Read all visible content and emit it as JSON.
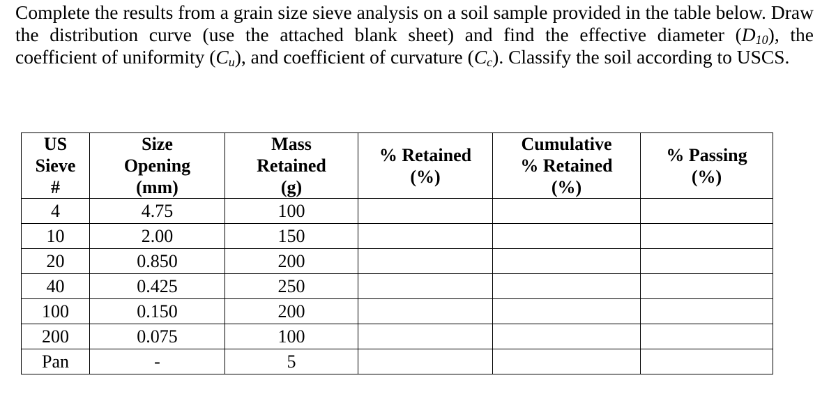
{
  "question": {
    "segments": [
      "Complete the results from a grain size sieve analysis on a soil sample provided in the table below. Draw the distribution curve (use the attached blank sheet) and find the effective diameter (",
      "D",
      "10",
      "), the coefficient of uniformity (",
      "C",
      "u",
      "), and coefficient of curvature (",
      "C",
      "c",
      "). Classify the soil according to USCS."
    ]
  },
  "table": {
    "headers": [
      [
        "US",
        "Sieve",
        "#"
      ],
      [
        "Size",
        "Opening",
        "(mm)"
      ],
      [
        "Mass",
        "Retained",
        "(g)"
      ],
      [
        "% Retained",
        "(%)"
      ],
      [
        "Cumulative",
        "% Retained",
        "(%)"
      ],
      [
        "% Passing",
        "(%)"
      ]
    ],
    "rows": [
      [
        "4",
        "4.75",
        "100"
      ],
      [
        "10",
        "2.00",
        "150"
      ],
      [
        "20",
        "0.850",
        "200"
      ],
      [
        "40",
        "0.425",
        "250"
      ],
      [
        "100",
        "0.150",
        "200"
      ],
      [
        "200",
        "0.075",
        "100"
      ],
      [
        "Pan",
        "-",
        "5"
      ]
    ]
  }
}
